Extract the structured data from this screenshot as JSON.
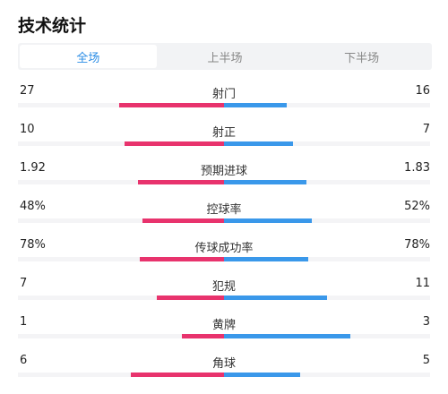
{
  "header": {
    "title": "技术统计"
  },
  "tabs": [
    {
      "label": "全场",
      "active": true
    },
    {
      "label": "上半场",
      "active": false
    },
    {
      "label": "下半场",
      "active": false
    }
  ],
  "colors": {
    "home": "#e8336d",
    "away": "#3a98ea",
    "active_tab": "#2b8de6"
  },
  "stats": [
    {
      "name": "射门",
      "home": "27",
      "away": "16",
      "home_share": 0.62,
      "away_share": 0.37
    },
    {
      "name": "射正",
      "home": "10",
      "away": "7",
      "home_share": 0.59,
      "away_share": 0.41
    },
    {
      "name": "预期进球",
      "home": "1.92",
      "away": "1.83",
      "home_share": 0.51,
      "away_share": 0.49
    },
    {
      "name": "控球率",
      "home": "48%",
      "away": "52%",
      "home_share": 0.48,
      "away_share": 0.52
    },
    {
      "name": "传球成功率",
      "home": "78%",
      "away": "78%",
      "home_share": 0.5,
      "away_share": 0.5
    },
    {
      "name": "犯规",
      "home": "7",
      "away": "11",
      "home_share": 0.4,
      "away_share": 0.61
    },
    {
      "name": "黄牌",
      "home": "1",
      "away": "3",
      "home_share": 0.25,
      "away_share": 0.75
    },
    {
      "name": "角球",
      "home": "6",
      "away": "5",
      "home_share": 0.55,
      "away_share": 0.45
    }
  ]
}
